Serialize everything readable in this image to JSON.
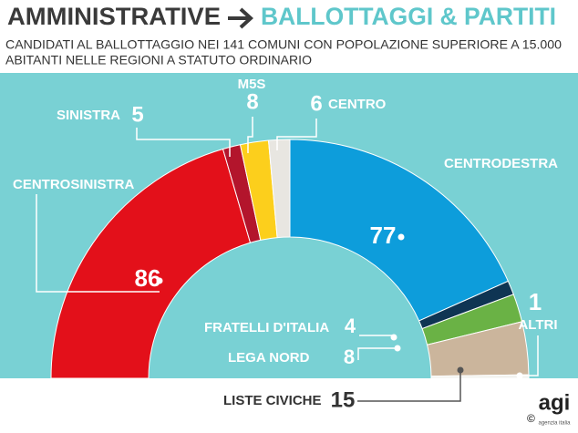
{
  "chart_data": {
    "type": "half-donut",
    "title": "AMMINISTRATIVE",
    "title_highlight": "BALLOTTAGGI & PARTITI",
    "subtitle_lines": [
      "CANDIDATI AL BALLOTTAGGIO NEI 141 COMUNI CON POPOLAZIONE SUPERIORE A 15.000",
      "ABITANTI NELLE REGIONI A STATUTO ORDINARIO"
    ],
    "categories": [
      "CENTROSINISTRA",
      "SINISTRA",
      "M5S",
      "CENTRO",
      "CENTRODESTRA",
      "FRATELLI D'ITALIA",
      "LEGA NORD",
      "LISTE CIVICHE",
      "ALTRI"
    ],
    "values": [
      86,
      5,
      8,
      6,
      77,
      4,
      8,
      15,
      1
    ],
    "colors": [
      "#e3101a",
      "#b3152c",
      "#fccf1c",
      "#e8e6e1",
      "#0d9ddb",
      "#0f3553",
      "#6ab245",
      "#cbb59c",
      "#f2f2ee"
    ],
    "source": {
      "copyright": "©",
      "logo": "agi",
      "logo_caption": "agenzia italia"
    }
  }
}
